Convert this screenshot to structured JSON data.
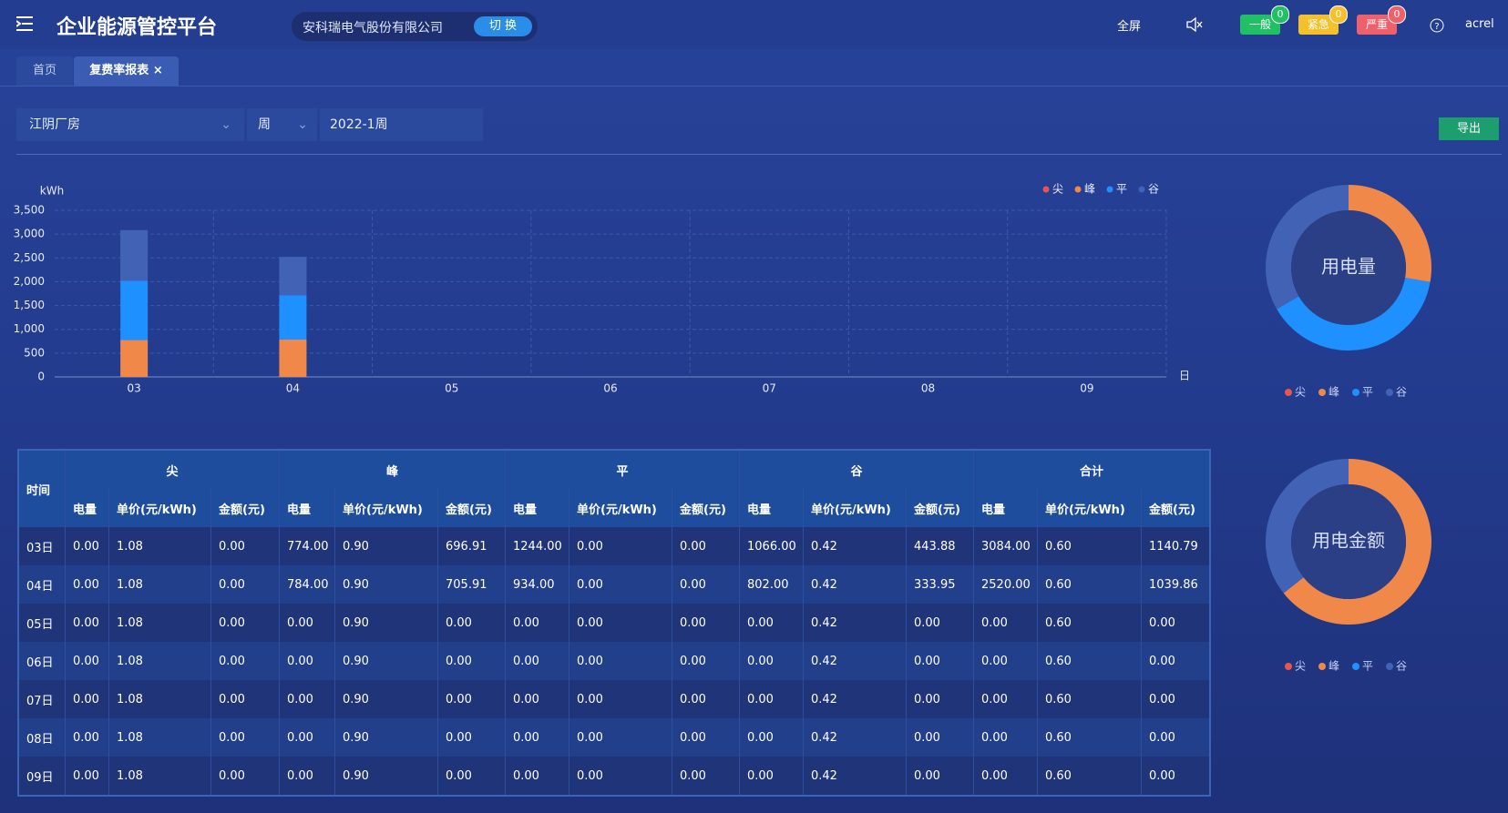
{
  "header": {
    "title": "企业能源管控平台",
    "company": "安科瑞电气股份有限公司",
    "switch": "切 换",
    "fullscreen": "全屏",
    "alerts": [
      {
        "label": "一般",
        "count": 0,
        "color": "#21c065"
      },
      {
        "label": "紧急",
        "count": 0,
        "color": "#f6c02c"
      },
      {
        "label": "严重",
        "count": 0,
        "color": "#f0606a"
      }
    ],
    "user": "acrel"
  },
  "tabs": [
    "首页",
    "复费率报表"
  ],
  "filters": {
    "site": "江阴厂房",
    "period": "周",
    "date": "2022-1周",
    "export": "导出"
  },
  "chart_data": [
    {
      "type": "bar",
      "stacked": true,
      "y_label": "kWh",
      "x_label": "日",
      "categories": [
        "03",
        "04",
        "05",
        "06",
        "07",
        "08",
        "09"
      ],
      "series": [
        {
          "name": "尖",
          "color": "#e8554e",
          "values": [
            0,
            0,
            0,
            0,
            0,
            0,
            0
          ]
        },
        {
          "name": "峰",
          "color": "#f0884a",
          "values": [
            774,
            784,
            0,
            0,
            0,
            0,
            0
          ]
        },
        {
          "name": "平",
          "color": "#1e90ff",
          "values": [
            1244,
            934,
            0,
            0,
            0,
            0,
            0
          ]
        },
        {
          "name": "谷",
          "color": "#4263b5",
          "values": [
            1066,
            802,
            0,
            0,
            0,
            0,
            0
          ]
        }
      ],
      "ylim": [
        0,
        3500
      ],
      "yticks": [
        0,
        500,
        {
          "value": 1000,
          "label": "1,000"
        },
        {
          "value": 1500,
          "label": "1,500"
        },
        {
          "value": 2000,
          "label": "2,000"
        },
        {
          "value": 2500,
          "label": "2,500"
        },
        {
          "value": 3000,
          "label": "3,000"
        },
        {
          "value": 3500,
          "label": "3,500"
        }
      ],
      "grid": true,
      "legend": "top-right"
    },
    {
      "type": "pie",
      "center_label": "用电量",
      "categories": [
        "尖",
        "峰",
        "平",
        "谷"
      ],
      "colors": [
        "#e8554e",
        "#f0884a",
        "#1e90ff",
        "#4263b5"
      ],
      "values": [
        0,
        1558,
        2178,
        1868
      ]
    },
    {
      "type": "pie",
      "center_label": "用电金额",
      "categories": [
        "尖",
        "峰",
        "平",
        "谷"
      ],
      "colors": [
        "#e8554e",
        "#f0884a",
        "#1e90ff",
        "#4263b5"
      ],
      "values": [
        0,
        1402.82,
        0,
        777.83
      ]
    }
  ],
  "table": {
    "time_header": "时间",
    "groups": [
      "尖",
      "峰",
      "平",
      "谷",
      "合计"
    ],
    "subheaders": [
      "电量",
      "单价(元/kWh)",
      "金额(元)"
    ],
    "rows": [
      [
        "03日",
        "0.00",
        "1.08",
        "0.00",
        "774.00",
        "0.90",
        "696.91",
        "1244.00",
        "0.00",
        "0.00",
        "1066.00",
        "0.42",
        "443.88",
        "3084.00",
        "0.60",
        "1140.79"
      ],
      [
        "04日",
        "0.00",
        "1.08",
        "0.00",
        "784.00",
        "0.90",
        "705.91",
        "934.00",
        "0.00",
        "0.00",
        "802.00",
        "0.42",
        "333.95",
        "2520.00",
        "0.60",
        "1039.86"
      ],
      [
        "05日",
        "0.00",
        "1.08",
        "0.00",
        "0.00",
        "0.90",
        "0.00",
        "0.00",
        "0.00",
        "0.00",
        "0.00",
        "0.42",
        "0.00",
        "0.00",
        "0.60",
        "0.00"
      ],
      [
        "06日",
        "0.00",
        "1.08",
        "0.00",
        "0.00",
        "0.90",
        "0.00",
        "0.00",
        "0.00",
        "0.00",
        "0.00",
        "0.42",
        "0.00",
        "0.00",
        "0.60",
        "0.00"
      ],
      [
        "07日",
        "0.00",
        "1.08",
        "0.00",
        "0.00",
        "0.90",
        "0.00",
        "0.00",
        "0.00",
        "0.00",
        "0.00",
        "0.42",
        "0.00",
        "0.00",
        "0.60",
        "0.00"
      ],
      [
        "08日",
        "0.00",
        "1.08",
        "0.00",
        "0.00",
        "0.90",
        "0.00",
        "0.00",
        "0.00",
        "0.00",
        "0.00",
        "0.42",
        "0.00",
        "0.00",
        "0.60",
        "0.00"
      ],
      [
        "09日",
        "0.00",
        "1.08",
        "0.00",
        "0.00",
        "0.90",
        "0.00",
        "0.00",
        "0.00",
        "0.00",
        "0.00",
        "0.42",
        "0.00",
        "0.00",
        "0.60",
        "0.00"
      ]
    ]
  }
}
